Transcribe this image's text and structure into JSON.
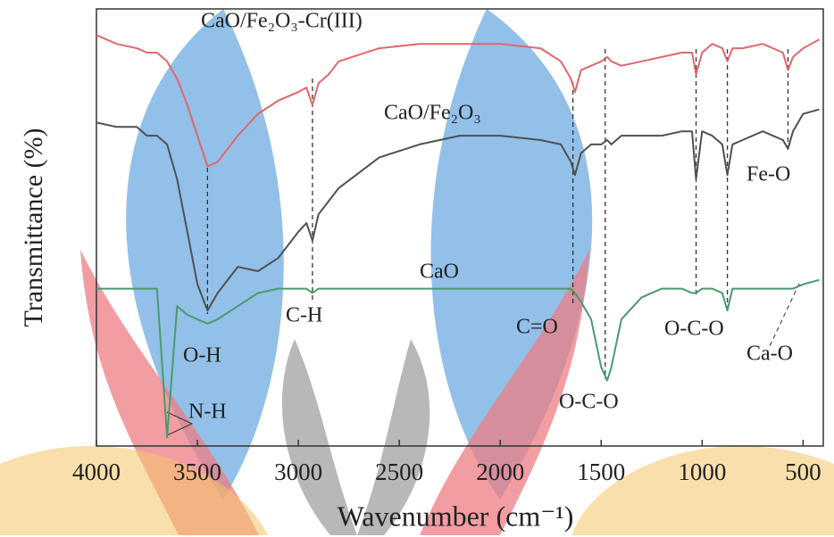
{
  "chart_data": {
    "type": "line",
    "y_label": "Transmittance (%)",
    "x_label": "Wavenumber (cm⁻¹)",
    "xlim": [
      4000,
      400
    ],
    "ylim": [
      0,
      100
    ],
    "xticks": [
      4000,
      3500,
      3000,
      2500,
      2000,
      1500,
      1000,
      500
    ],
    "x": [
      4000,
      3900,
      3800,
      3750,
      3700,
      3650,
      3600,
      3550,
      3500,
      3450,
      3400,
      3300,
      3200,
      3100,
      3000,
      2960,
      2930,
      2900,
      2850,
      2800,
      2600,
      2400,
      2200,
      2000,
      1800,
      1700,
      1650,
      1630,
      1600,
      1550,
      1500,
      1470,
      1450,
      1400,
      1300,
      1200,
      1100,
      1050,
      1030,
      1000,
      950,
      900,
      875,
      850,
      800,
      700,
      600,
      575,
      550,
      500,
      420
    ],
    "series": [
      {
        "name": "CaO/Fe₂O₃-Cr(III)",
        "color": "#e0676c",
        "values": [
          94,
          92,
          91,
          90,
          90,
          88,
          84,
          78,
          71,
          64,
          65,
          71,
          76,
          79,
          81,
          82,
          78,
          83,
          85,
          88,
          91,
          92,
          92,
          92,
          91,
          88,
          84,
          81,
          86,
          87,
          88,
          89,
          88,
          87,
          88,
          89,
          90,
          90,
          85,
          90,
          92,
          91,
          88,
          91,
          91,
          92,
          90,
          86,
          89,
          91,
          93
        ]
      },
      {
        "name": "CaO/Fe₂O₃",
        "color": "#505050",
        "values": [
          74,
          73,
          73,
          71,
          71,
          69,
          61,
          49,
          37,
          31,
          35,
          41,
          40,
          43,
          49,
          51,
          47,
          53,
          56,
          59,
          66,
          69,
          71,
          71,
          70,
          69,
          65,
          62,
          67,
          69,
          69,
          70,
          69,
          71,
          71,
          71,
          72,
          72,
          61,
          72,
          71,
          69,
          62,
          69,
          70,
          72,
          70,
          68,
          72,
          76,
          77
        ]
      },
      {
        "name": "CaO",
        "color": "#4a9a6c",
        "values": [
          36,
          36,
          36,
          36,
          36,
          2,
          32,
          30,
          29,
          28,
          29,
          32,
          35,
          36,
          36,
          36,
          35,
          36,
          36,
          36,
          36,
          36,
          36,
          36,
          36,
          36,
          36,
          35,
          33,
          29,
          18,
          15,
          18,
          29,
          34,
          36,
          36,
          35,
          35,
          36,
          36,
          35,
          31,
          36,
          36,
          36,
          36,
          36,
          36,
          37,
          38
        ]
      }
    ],
    "peak_lines": [
      3450,
      2930,
      1640,
      1480,
      1030,
      875,
      575
    ],
    "annotations": [
      "O-H",
      "N-H",
      "C-H",
      "C=O",
      "O-C-O",
      "O-C-O",
      "Ca-O",
      "Fe-O"
    ]
  }
}
